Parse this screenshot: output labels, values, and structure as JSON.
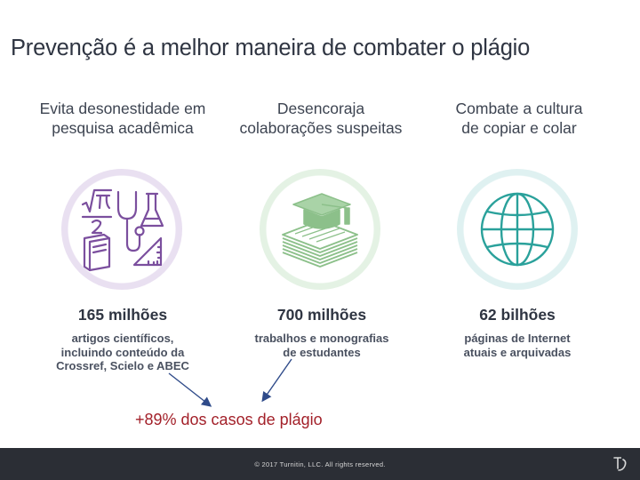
{
  "title": "Prevenção é a melhor maneira de combater o plágio",
  "columns": [
    {
      "heading_line1": "Evita desonestidade em",
      "heading_line2": "pesquisa acadêmica",
      "icon": "science-icon",
      "color": "#7b4f9e",
      "stat": "165 milhões",
      "desc_line1": "artigos científicos,",
      "desc_line2": "incluindo conteúdo da",
      "desc_line3": "Crossref, Scielo e ABEC"
    },
    {
      "heading_line1": "Desencoraja",
      "heading_line2": "colaborações suspeitas",
      "icon": "graduation-cap-icon",
      "color": "#8cc08a",
      "stat": "700 milhões",
      "desc_line1": "trabalhos e monografias",
      "desc_line2": "de estudantes"
    },
    {
      "heading_line1": "Combate a cultura",
      "heading_line2": "de copiar e colar",
      "icon": "globe-icon",
      "color": "#2aa19b",
      "stat": "62 bilhões",
      "desc_line1": "páginas de Internet",
      "desc_line2": "atuais e arquivadas"
    }
  ],
  "highlight": "+89% dos casos de plágio",
  "footer": {
    "copyright": "© 2017 Turnitin, LLC. All rights reserved."
  },
  "colors": {
    "highlight": "#a3212a",
    "arrow": "#2f4b8a",
    "footer_bg": "#2b2e35"
  }
}
